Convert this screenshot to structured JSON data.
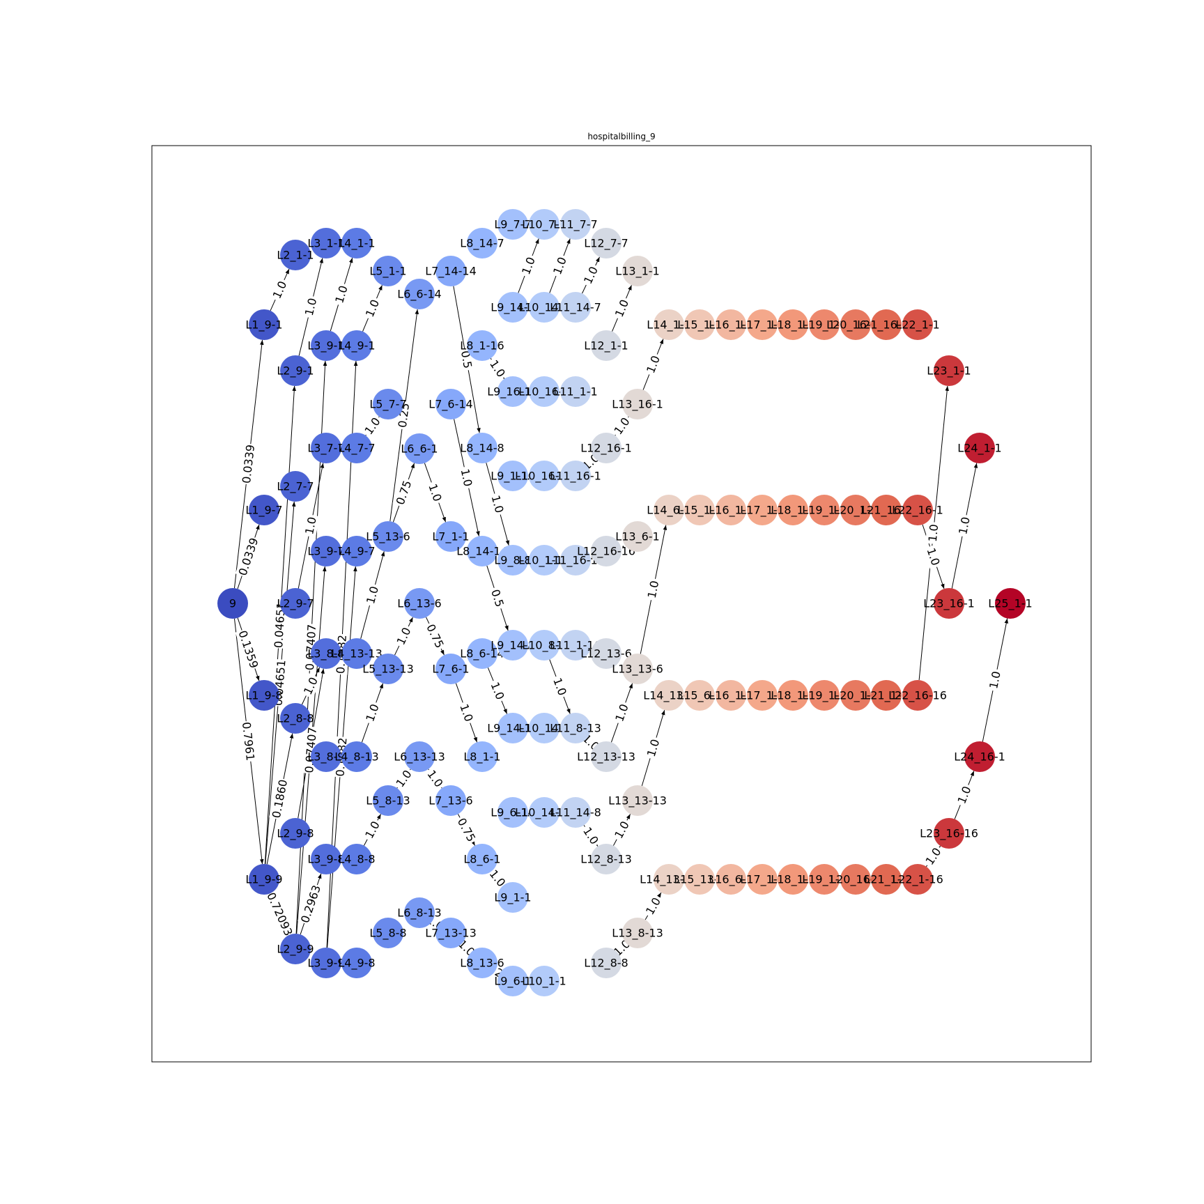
{
  "title": "hospitalbilling_9",
  "colormap": {
    "low": "#3b4cc0",
    "mid": "#dddddd",
    "high": "#b40426"
  },
  "nodes": [
    {
      "id": "9",
      "layer": 0
    },
    {
      "id": "L1_9-1",
      "layer": 1
    },
    {
      "id": "L1_9-7",
      "layer": 1
    },
    {
      "id": "L1_9-8",
      "layer": 1
    },
    {
      "id": "L1_9-9",
      "layer": 1
    },
    {
      "id": "L2_1-1",
      "layer": 2
    },
    {
      "id": "L2_9-1",
      "layer": 2
    },
    {
      "id": "L2_7-7",
      "layer": 2
    },
    {
      "id": "L2_9-7",
      "layer": 2
    },
    {
      "id": "L2_8-8",
      "layer": 2
    },
    {
      "id": "L2_9-8",
      "layer": 2
    },
    {
      "id": "L2_9-9",
      "layer": 2
    },
    {
      "id": "L3_1-1",
      "layer": 3
    },
    {
      "id": "L3_9-1",
      "layer": 3
    },
    {
      "id": "L3_7-7",
      "layer": 3
    },
    {
      "id": "L3_9-7",
      "layer": 3
    },
    {
      "id": "L3_8-8",
      "layer": 3
    },
    {
      "id": "L3_8-9",
      "layer": 3
    },
    {
      "id": "L3_9-8",
      "layer": 3
    },
    {
      "id": "L3_9-9",
      "layer": 3
    },
    {
      "id": "L4_1-1",
      "layer": 4
    },
    {
      "id": "L4_9-1",
      "layer": 4
    },
    {
      "id": "L4_7-7",
      "layer": 4
    },
    {
      "id": "L4_9-7",
      "layer": 4
    },
    {
      "id": "L4_13-13",
      "layer": 4
    },
    {
      "id": "L4_8-13",
      "layer": 4
    },
    {
      "id": "L4_8-8",
      "layer": 4
    },
    {
      "id": "L4_9-8",
      "layer": 4
    },
    {
      "id": "L5_1-1",
      "layer": 5
    },
    {
      "id": "L5_7-7",
      "layer": 5
    },
    {
      "id": "L5_13-6",
      "layer": 5
    },
    {
      "id": "L5_13-13",
      "layer": 5
    },
    {
      "id": "L5_8-13",
      "layer": 5
    },
    {
      "id": "L5_8-8",
      "layer": 5
    },
    {
      "id": "L6_6-14",
      "layer": 6
    },
    {
      "id": "L6_6-1",
      "layer": 6
    },
    {
      "id": "L6_13-6",
      "layer": 6
    },
    {
      "id": "L6_13-13",
      "layer": 6
    },
    {
      "id": "L6_8-13",
      "layer": 6
    },
    {
      "id": "L7_14-14",
      "layer": 7
    },
    {
      "id": "L7_6-14",
      "layer": 7
    },
    {
      "id": "L7_1-1",
      "layer": 7
    },
    {
      "id": "L7_6-1",
      "layer": 7
    },
    {
      "id": "L7_13-6",
      "layer": 7
    },
    {
      "id": "L7_13-13",
      "layer": 7
    },
    {
      "id": "L8_14-7",
      "layer": 8
    },
    {
      "id": "L8_1-16",
      "layer": 8
    },
    {
      "id": "L8_14-8",
      "layer": 8
    },
    {
      "id": "L8_14-14",
      "layer": 8
    },
    {
      "id": "L8_6-14",
      "layer": 8
    },
    {
      "id": "L8_1-1",
      "layer": 8
    },
    {
      "id": "L8_6-1",
      "layer": 8
    },
    {
      "id": "L8_13-6",
      "layer": 8
    },
    {
      "id": "L9_7-7",
      "layer": 9
    },
    {
      "id": "L9_14-7",
      "layer": 9
    },
    {
      "id": "L9_16-16",
      "layer": 9
    },
    {
      "id": "L9_1-16",
      "layer": 9
    },
    {
      "id": "L9_8-8",
      "layer": 9
    },
    {
      "id": "L9_14-8",
      "layer": 9
    },
    {
      "id": "L9_14-14",
      "layer": 9
    },
    {
      "id": "L9_6-14",
      "layer": 9
    },
    {
      "id": "L9_1-1",
      "layer": 9
    },
    {
      "id": "L9_6-1",
      "layer": 9
    },
    {
      "id": "L10_7-7",
      "layer": 10
    },
    {
      "id": "L10_14-7",
      "layer": 10
    },
    {
      "id": "L10_16-1",
      "layer": 10
    },
    {
      "id": "L10_16-16",
      "layer": 10
    },
    {
      "id": "L10_1-16",
      "layer": 10
    },
    {
      "id": "L10_8-8",
      "layer": 10
    },
    {
      "id": "L10_14-8",
      "layer": 10
    },
    {
      "id": "L10_14-14",
      "layer": 10
    },
    {
      "id": "L10_1-1",
      "layer": 10
    },
    {
      "id": "L11_7-7",
      "layer": 11
    },
    {
      "id": "L11_14-7",
      "layer": 11
    },
    {
      "id": "L11_1-1",
      "layer": 11
    },
    {
      "id": "L11_16-1",
      "layer": 11
    },
    {
      "id": "L11_16-16",
      "layer": 11
    },
    {
      "id": "L11_1-16",
      "layer": 11
    },
    {
      "id": "L11_8-13",
      "layer": 11
    },
    {
      "id": "L11_14-8",
      "layer": 11
    },
    {
      "id": "L12_7-7",
      "layer": 12
    },
    {
      "id": "L12_1-1",
      "layer": 12
    },
    {
      "id": "L12_16-1",
      "layer": 12
    },
    {
      "id": "L12_16-16",
      "layer": 12
    },
    {
      "id": "L12_13-6",
      "layer": 12
    },
    {
      "id": "L12_13-13",
      "layer": 12
    },
    {
      "id": "L12_8-13",
      "layer": 12
    },
    {
      "id": "L12_8-8",
      "layer": 12
    },
    {
      "id": "L13_1-1",
      "layer": 13
    },
    {
      "id": "L13_16-1",
      "layer": 13
    },
    {
      "id": "L13_6-1",
      "layer": 13
    },
    {
      "id": "L13_13-6",
      "layer": 13
    },
    {
      "id": "L13_13-13",
      "layer": 13
    },
    {
      "id": "L13_8-13",
      "layer": 13
    },
    {
      "id": "L14_1-1",
      "layer": 14
    },
    {
      "id": "L14_6-1",
      "layer": 14
    },
    {
      "id": "L14_13-6",
      "layer": 14
    },
    {
      "id": "L14_13-13",
      "layer": 14
    },
    {
      "id": "L15_1-1",
      "layer": 15
    },
    {
      "id": "L15_1-1b",
      "layer": 15
    },
    {
      "id": "L15_6-1",
      "layer": 15
    },
    {
      "id": "L15_13-6",
      "layer": 15
    },
    {
      "id": "L16_1-1",
      "layer": 16
    },
    {
      "id": "L16_1-1b",
      "layer": 16
    },
    {
      "id": "L16_1-1c",
      "layer": 16
    },
    {
      "id": "L16_6-1",
      "layer": 16
    },
    {
      "id": "L17_1-1",
      "layer": 17
    },
    {
      "id": "L17_1-1b",
      "layer": 17
    },
    {
      "id": "L17_1-1c",
      "layer": 17
    },
    {
      "id": "L17_1-1d",
      "layer": 17
    },
    {
      "id": "L18_1-1",
      "layer": 18
    },
    {
      "id": "L18_1-1b",
      "layer": 18
    },
    {
      "id": "L18_1-1c",
      "layer": 18
    },
    {
      "id": "L18_1-1d",
      "layer": 18
    },
    {
      "id": "L19_1-1",
      "layer": 19
    },
    {
      "id": "L19_1-1b",
      "layer": 19
    },
    {
      "id": "L19_1-1c",
      "layer": 19
    },
    {
      "id": "L19_1-1d",
      "layer": 19
    },
    {
      "id": "L20_16-16",
      "layer": 20
    },
    {
      "id": "L20_1-1",
      "layer": 20
    },
    {
      "id": "L20_1-1b",
      "layer": 20
    },
    {
      "id": "L20_16-1",
      "layer": 20
    },
    {
      "id": "L21_16-16",
      "layer": 21
    },
    {
      "id": "L21_16-1",
      "layer": 21
    },
    {
      "id": "L21_1-1",
      "layer": 21
    },
    {
      "id": "L21_1-1b",
      "layer": 21
    },
    {
      "id": "L22_1-1",
      "layer": 22
    },
    {
      "id": "L22_16-1",
      "layer": 22
    },
    {
      "id": "L22_16-16",
      "layer": 22
    },
    {
      "id": "L22_1-16",
      "layer": 22
    },
    {
      "id": "L23_1-1",
      "layer": 23
    },
    {
      "id": "L23_16-1",
      "layer": 23
    },
    {
      "id": "L23_16-16",
      "layer": 23
    },
    {
      "id": "L24_1-1",
      "layer": 24
    },
    {
      "id": "L24_16-1",
      "layer": 24
    },
    {
      "id": "L25_1-1",
      "layer": 25
    }
  ],
  "edges": [
    {
      "from": "9",
      "to": "L1_9-1",
      "label": "0.0339"
    },
    {
      "from": "9",
      "to": "L1_9-7",
      "label": "0.0339"
    },
    {
      "from": "9",
      "to": "L1_9-8",
      "label": "0.1359"
    },
    {
      "from": "9",
      "to": "L1_9-9",
      "label": "0.7961"
    },
    {
      "from": "L1_9-1",
      "to": "L2_1-1",
      "label": "1.0"
    },
    {
      "from": "L1_9-9",
      "to": "L2_9-1",
      "label": "0.04651"
    },
    {
      "from": "L1_9-9",
      "to": "L2_7-7",
      "label": "0.04651"
    },
    {
      "from": "L1_9-9",
      "to": "L2_8-8",
      "label": "0.1860"
    },
    {
      "from": "L1_9-9",
      "to": "L2_9-9",
      "label": "0.72093"
    },
    {
      "from": "L2_9-1",
      "to": "L3_1-1",
      "label": "1.0"
    },
    {
      "from": "L2_9-7",
      "to": "L3_7-7",
      "label": "1.0"
    },
    {
      "from": "L2_8-8",
      "to": "L3_8-8",
      "label": "1.0"
    },
    {
      "from": "L2_9-8",
      "to": "L3_8-8",
      "label": "1.0"
    },
    {
      "from": "L2_9-9",
      "to": "L3_9-1",
      "label": "0.07407"
    },
    {
      "from": "L2_9-9",
      "to": "L3_9-7",
      "label": "0.07407"
    },
    {
      "from": "L2_9-9",
      "to": "L3_9-8",
      "label": "0.2963"
    },
    {
      "from": "L3_9-1",
      "to": "L4_1-1",
      "label": "1.0"
    },
    {
      "from": "L3_7-7",
      "to": "L4_7-7",
      "label": "1.0"
    },
    {
      "from": "L3_9-9",
      "to": "L4_9-1",
      "label": "0.1282"
    },
    {
      "from": "L3_9-9",
      "to": "L4_9-7",
      "label": "0.1282"
    },
    {
      "from": "L4_9-1",
      "to": "L5_1-1",
      "label": "1.0"
    },
    {
      "from": "L4_7-7",
      "to": "L5_7-7",
      "label": "1.0"
    },
    {
      "from": "L4_13-13",
      "to": "L5_13-6",
      "label": "1.0"
    },
    {
      "from": "L4_8-13",
      "to": "L5_13-13",
      "label": "1.0"
    },
    {
      "from": "L4_8-8",
      "to": "L5_8-13",
      "label": "1.0"
    },
    {
      "from": "L5_13-6",
      "to": "L6_6-14",
      "label": "0.25"
    },
    {
      "from": "L5_13-6",
      "to": "L6_6-1",
      "label": "0.75"
    },
    {
      "from": "L5_13-13",
      "to": "L6_13-6",
      "label": "1.0"
    },
    {
      "from": "L5_8-13",
      "to": "L6_13-13",
      "label": "1.0"
    },
    {
      "from": "L6_6-1",
      "to": "L7_1-1",
      "label": "1.0"
    },
    {
      "from": "L6_13-6",
      "to": "L7_6-1",
      "label": "0.75"
    },
    {
      "from": "L6_13-13",
      "to": "L7_13-6",
      "label": "1.0"
    },
    {
      "from": "L6_8-13",
      "to": "L7_13-13",
      "label": "1.0"
    },
    {
      "from": "L7_14-14",
      "to": "L8_14-8",
      "label": "0.5"
    },
    {
      "from": "L7_6-14",
      "to": "L8_14-14",
      "label": "1.0"
    },
    {
      "from": "L7_6-1",
      "to": "L8_1-1",
      "label": "1.0"
    },
    {
      "from": "L7_13-6",
      "to": "L8_6-1",
      "label": "0.75"
    },
    {
      "from": "L7_13-13",
      "to": "L8_13-6",
      "label": "1.0"
    },
    {
      "from": "L8_1-16",
      "to": "L9_16-16",
      "label": "1.0"
    },
    {
      "from": "L8_14-8",
      "to": "L9_8-8",
      "label": "1.0"
    },
    {
      "from": "L8_14-14",
      "to": "L9_14-8",
      "label": "0.5"
    },
    {
      "from": "L8_6-14",
      "to": "L9_14-14",
      "label": "1.0"
    },
    {
      "from": "L8_6-1",
      "to": "L9_1-1",
      "label": "1.0"
    },
    {
      "from": "L8_13-6",
      "to": "L9_6-1",
      "label": "0.25"
    },
    {
      "from": "L9_14-7",
      "to": "L10_7-7",
      "label": "1.0"
    },
    {
      "from": "L9_1-16",
      "to": "L10_16-16",
      "label": "0.5"
    },
    {
      "from": "L9_14-8",
      "to": "L10_8-8",
      "label": "1.0"
    },
    {
      "from": "L9_14-14",
      "to": "L10_14-8",
      "label": "0.5"
    },
    {
      "from": "L9_6-14",
      "to": "L10_14-14",
      "label": "1.0"
    },
    {
      "from": "L10_14-7",
      "to": "L11_7-7",
      "label": "1.0"
    },
    {
      "from": "L10_1-16",
      "to": "L11_16-16",
      "label": "0.5"
    },
    {
      "from": "L10_8-8",
      "to": "L11_8-13",
      "label": "1.0"
    },
    {
      "from": "L10_14-14",
      "to": "L11_14-8",
      "label": "0.5"
    },
    {
      "from": "L11_14-7",
      "to": "L12_7-7",
      "label": "1.0"
    },
    {
      "from": "L11_16-1",
      "to": "L12_16-1",
      "label": "1.0"
    },
    {
      "from": "L11_16-16",
      "to": "L12_16-16",
      "label": "1.0"
    },
    {
      "from": "L11_8-13",
      "to": "L12_13-13",
      "label": "1.0"
    },
    {
      "from": "L11_14-8",
      "to": "L12_8-13",
      "label": "1.0"
    },
    {
      "from": "L12_1-1",
      "to": "L13_1-1",
      "label": "1.0"
    },
    {
      "from": "L12_16-1",
      "to": "L13_16-1",
      "label": "1.0"
    },
    {
      "from": "L12_16-16",
      "to": "L13_6-1",
      "label": "1.0"
    },
    {
      "from": "L12_13-13",
      "to": "L13_13-6",
      "label": "1.0"
    },
    {
      "from": "L12_8-13",
      "to": "L13_13-13",
      "label": "1.0"
    },
    {
      "from": "L12_8-8",
      "to": "L13_8-13",
      "label": "1.0"
    },
    {
      "from": "L13_16-1",
      "to": "L14_1-1",
      "label": "1.0"
    },
    {
      "from": "L13_13-6",
      "to": "L14_6-1",
      "label": "1.0"
    },
    {
      "from": "L13_13-13",
      "to": "L14_13-6",
      "label": "1.0"
    },
    {
      "from": "L13_8-13",
      "to": "L14_13-13",
      "label": "1.0"
    },
    {
      "from": "L22_16-16",
      "to": "L23_1-1",
      "label": "1.0"
    },
    {
      "from": "L22_16-1",
      "to": "L23_16-1",
      "label": "1.0"
    },
    {
      "from": "L22_1-16",
      "to": "L23_16-16",
      "label": "1.0"
    },
    {
      "from": "L23_16-1",
      "to": "L24_1-1",
      "label": "1.0"
    },
    {
      "from": "L23_16-16",
      "to": "L24_16-1",
      "label": "1.0"
    },
    {
      "from": "L24_16-1",
      "to": "L25_1-1",
      "label": "1.0"
    }
  ],
  "node_labels": {
    "9": "9",
    "L1_9-1": "L1_9-1",
    "L1_9-7": "L1_9-7",
    "L1_9-8": "L1_9-8",
    "L1_9-9": "L1_9-9",
    "L2_1-1": "L2_1-1",
    "L2_9-1": "L2_9-1",
    "L2_7-7": "L2_7-7",
    "L2_9-7": "L2_9-7",
    "L2_8-8": "L2_8-8",
    "L2_9-8": "L2_9-8",
    "L2_9-9": "L2_9-9",
    "L3_1-1": "L3_1-1",
    "L3_9-1": "L3_9-1",
    "L3_7-7": "L3_7-7",
    "L3_9-7": "L3_9-7",
    "L3_8-8": "L3_8-8",
    "L3_8-9": "L3_8-9",
    "L3_9-8": "L3_9-8",
    "L3_9-9": "L3_9-9",
    "L4_1-1": "L4_1-1",
    "L4_9-1": "L4_9-1",
    "L4_7-7": "L4_7-7",
    "L4_9-7": "L4_9-7",
    "L4_13-13": "L4_13-13",
    "L4_8-13": "L4_8-13",
    "L4_8-8": "L4_8-8",
    "L4_9-8": "L4_9-8",
    "L5_1-1": "L5_1-1",
    "L5_7-7": "L5_7-7",
    "L5_13-6": "L5_13-6",
    "L5_13-13": "L5_13-13",
    "L5_8-13": "L5_8-13",
    "L5_8-8": "L5_8-8",
    "L6_6-14": "L6_6-14",
    "L6_6-1": "L6_6-1",
    "L6_13-6": "L6_13-6",
    "L6_13-13": "L6_13-13",
    "L6_8-13": "L6_8-13",
    "L7_14-14": "L7_14-14",
    "L7_6-14": "L7_6-14",
    "L7_1-1": "L7_1-1",
    "L7_6-1": "L7_6-1",
    "L7_13-6": "L7_13-6",
    "L7_13-13": "L7_13-13",
    "L8_14-7": "L8_14-7",
    "L8_1-16": "L8_1-16",
    "L8_14-8": "L8_14-8",
    "L8_14-14": "L8_14-14",
    "L8_6-14": "L8_6-14",
    "L8_1-1": "L8_1-1",
    "L8_6-1": "L8_6-1",
    "L8_13-6": "L8_13-6",
    "L9_7-7": "L9_7-7",
    "L9_14-7": "L9_14-7",
    "L9_16-16": "L9_16-16",
    "L9_1-16": "L9_1-16",
    "L9_8-8": "L9_8-8",
    "L9_14-8": "L9_14-8",
    "L9_14-14": "L9_14-14",
    "L9_6-14": "L9_6-14",
    "L9_1-1": "L9_1-1",
    "L9_6-1": "L9_6-1",
    "L10_7-7": "L10_7-7",
    "L10_14-7": "L10_14-7",
    "L10_16-1": "L10_16-1",
    "L10_16-16": "L10_16-16",
    "L10_1-16": "L10_1-16",
    "L10_8-8": "L10_8-8",
    "L10_14-8": "L10_14-8",
    "L10_14-14": "L10_14-14",
    "L10_1-1": "L10_1-1",
    "L11_7-7": "L11_7-7",
    "L11_14-7": "L11_14-7",
    "L11_1-1": "L11_1-1",
    "L11_16-1": "L11_16-1",
    "L11_16-16": "L11_16-16",
    "L11_1-16": "L11_1-16",
    "L11_8-13": "L11_8-13",
    "L11_14-8": "L11_14-8",
    "L12_7-7": "L12_7-7",
    "L12_1-1": "L12_1-1",
    "L12_16-1": "L12_16-1",
    "L12_16-16": "L12_16-16",
    "L12_13-6": "L12_13-6",
    "L12_13-13": "L12_13-13",
    "L12_8-13": "L12_8-13",
    "L12_8-8": "L12_8-8",
    "L13_1-1": "L13_1-1",
    "L13_16-1": "L13_16-1",
    "L13_6-1": "L13_6-1",
    "L13_13-6": "L13_13-6",
    "L13_13-13": "L13_13-13",
    "L13_8-13": "L13_8-13",
    "L14_1-1": "L14_1-1",
    "L14_6-1": "L14_6-1",
    "L14_13-6": "L14_13-6",
    "L14_13-13": "L14_13-13",
    "L15_1-1": "L15_1-1",
    "L15_1-1b": "L15_1-1",
    "L15_6-1": "L15_6-1",
    "L15_13-6": "L15_13-6",
    "L16_1-1": "L16_1-1",
    "L16_1-1b": "L16_1-1",
    "L16_1-1c": "L16_1-1",
    "L16_6-1": "L16_6-1",
    "L17_1-1": "L17_1-1",
    "L17_1-1b": "L17_1-1",
    "L17_1-1c": "L17_1-1",
    "L17_1-1d": "L17_1-1",
    "L18_1-1": "L18_1-1",
    "L18_1-1b": "L18_1-1",
    "L18_1-1c": "L18_1-1",
    "L18_1-1d": "L18_1-1",
    "L19_1-1": "L19_1-1",
    "L19_1-1b": "L19_1-1",
    "L19_1-1c": "L19_1-1",
    "L19_1-1d": "L19_1-1",
    "L20_16-16": "L20_16-16",
    "L20_1-1": "L20_1-1",
    "L20_1-1b": "L20_1-1",
    "L20_16-1": "L20_16-1",
    "L21_16-16": "L21_16-16",
    "L21_16-1": "L21_16-1",
    "L21_1-1": "L21_1-1",
    "L21_1-1b": "L21_1-1",
    "L22_1-1": "L22_1-1",
    "L22_16-1": "L22_16-1",
    "L22_16-16": "L22_16-16",
    "L22_1-16": "L22_1-16",
    "L23_1-1": "L23_1-1",
    "L23_16-1": "L23_16-1",
    "L23_16-16": "L23_16-16",
    "L24_1-1": "L24_1-1",
    "L24_16-1": "L24_16-1",
    "L25_1-1": "L25_1-1"
  }
}
